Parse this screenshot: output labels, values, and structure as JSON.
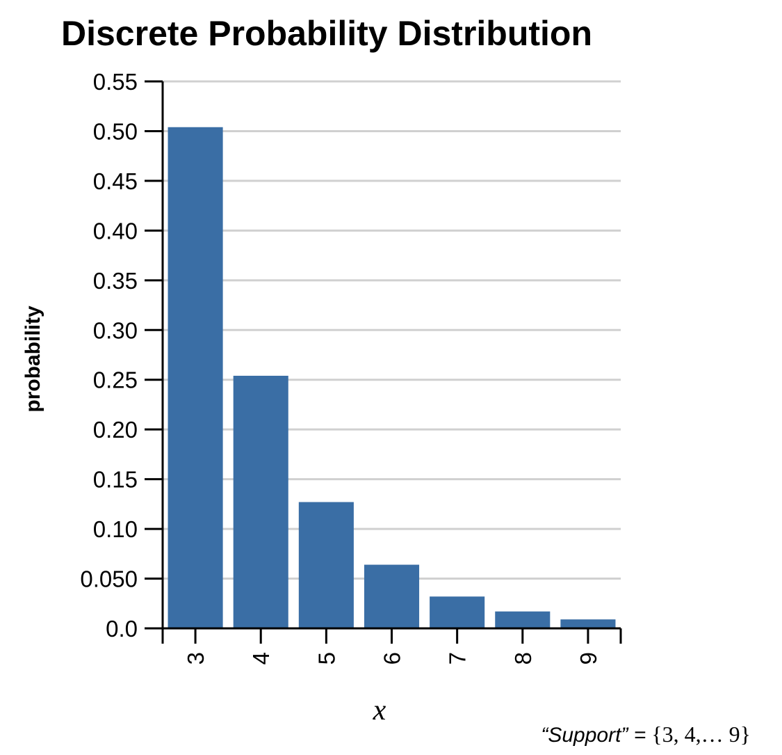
{
  "chart_data": {
    "type": "bar",
    "title": "Discrete Probability Distribution",
    "xlabel": "x",
    "ylabel": "probability",
    "categories": [
      "3",
      "4",
      "5",
      "6",
      "7",
      "8",
      "9"
    ],
    "values": [
      0.504,
      0.254,
      0.127,
      0.064,
      0.032,
      0.017,
      0.009
    ],
    "ylim": [
      0,
      0.55
    ],
    "yticks": [
      0,
      0.05,
      0.1,
      0.15,
      0.2,
      0.25,
      0.3,
      0.35,
      0.4,
      0.45,
      0.5,
      0.55
    ],
    "ytick_labels": [
      "0.0",
      "0.050",
      "0.10",
      "0.15",
      "0.20",
      "0.25",
      "0.30",
      "0.35",
      "0.40",
      "0.45",
      "0.50",
      "0.55"
    ],
    "grid": true,
    "bar_color": "#3a6ea5",
    "note": {
      "quoted": "“Support” =",
      "set": "{3, 4,… 9}"
    }
  }
}
